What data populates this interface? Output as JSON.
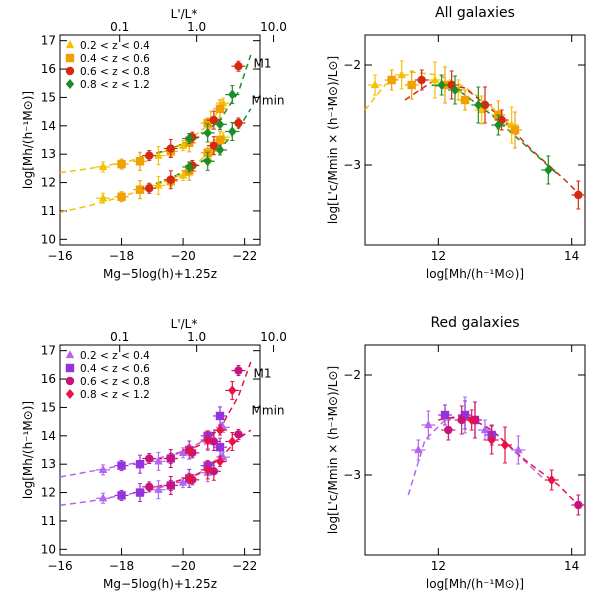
{
  "figure": {
    "panels_left_xlabel": "M_g−5log(h)+1.25z",
    "panels_left_xlabel_text": "Mg−5log(h)+1.25z",
    "panels_left_top_xlabel": "L'/L*",
    "panels_left_ylabel": "log[Mh/(h⁻¹M⊙)]",
    "panels_right_xlabel": "log[Mh/(h⁻¹M⊙)]",
    "panels_right_ylabel": "log[L'c/Mmin × (h⁻¹M⊙)/L⊙]"
  },
  "chart_data": [
    {
      "id": "top-left",
      "type": "scatter",
      "title": "",
      "xlabel": "Mg−5log(h)+1.25z",
      "ylabel": "log[Mh/(h⁻¹M⊙)]",
      "top_xlabel": "L'/L*",
      "xlim": [
        -16,
        -22.5
      ],
      "ylim": [
        9.8,
        17.2
      ],
      "xticks": [
        -16,
        -18,
        -20,
        -22
      ],
      "xtick_labels": [
        "−16",
        "−18",
        "−20",
        "−22"
      ],
      "yticks": [
        10,
        11,
        12,
        13,
        14,
        15,
        16,
        17
      ],
      "ytick_labels": [
        "10",
        "11",
        "12",
        "13",
        "14",
        "15",
        "16",
        "17"
      ],
      "top_ticks": [
        0.1,
        1.0,
        10.0
      ],
      "top_tick_labels": [
        "0.1",
        "1.0",
        "10.0"
      ],
      "annotations": [
        "M1",
        "Mmin"
      ],
      "legend": [
        {
          "label": "0.2 < z < 0.4",
          "color": "#f2c200",
          "marker": "triangle"
        },
        {
          "label": "0.4 < z < 0.6",
          "color": "#f0a000",
          "marker": "square"
        },
        {
          "label": "0.6 < z < 0.8",
          "color": "#d42a10",
          "marker": "circle"
        },
        {
          "label": "0.8 < z < 1.2",
          "color": "#1e8c28",
          "marker": "diamond"
        }
      ],
      "series": [
        {
          "name": "0.2 < z < 0.4 M1",
          "color": "#f2c200",
          "marker": "triangle",
          "x": [
            -17.4,
            -19.2,
            -20.0,
            -20.9,
            -21.3
          ],
          "y": [
            12.55,
            12.95,
            13.3,
            14.2,
            14.8
          ]
        },
        {
          "name": "0.4 < z < 0.6 M1",
          "color": "#f0a000",
          "marker": "square",
          "x": [
            -18.0,
            -18.6,
            -19.6,
            -20.2,
            -20.8,
            -21.2
          ],
          "y": [
            12.65,
            12.75,
            13.1,
            13.4,
            14.1,
            14.6
          ]
        },
        {
          "name": "0.6 < z < 0.8 M1",
          "color": "#d42a10",
          "marker": "circle",
          "x": [
            -18.9,
            -19.6,
            -20.3,
            -21.0,
            -21.8
          ],
          "y": [
            12.95,
            13.2,
            13.6,
            14.2,
            16.1
          ]
        },
        {
          "name": "0.8 < z < 1.2 M1",
          "color": "#1e8c28",
          "marker": "diamond",
          "x": [
            -20.2,
            -20.8,
            -21.2,
            -21.6
          ],
          "y": [
            13.55,
            13.75,
            14.05,
            15.1
          ]
        },
        {
          "name": "0.2 < z < 0.4 Mmin",
          "color": "#f2c200",
          "marker": "triangle",
          "x": [
            -17.4,
            -19.2,
            -20.0,
            -20.9,
            -21.3
          ],
          "y": [
            11.45,
            11.9,
            12.25,
            13.1,
            13.6
          ]
        },
        {
          "name": "0.4 < z < 0.6 Mmin",
          "color": "#f0a000",
          "marker": "square",
          "x": [
            -18.0,
            -18.6,
            -19.6,
            -20.2,
            -20.8,
            -21.2
          ],
          "y": [
            11.5,
            11.75,
            12.05,
            12.4,
            13.05,
            13.5
          ]
        },
        {
          "name": "0.6 < z < 0.8 Mmin",
          "color": "#d42a10",
          "marker": "circle",
          "x": [
            -18.9,
            -19.6,
            -20.3,
            -21.0,
            -21.8
          ],
          "y": [
            11.8,
            12.1,
            12.6,
            13.3,
            14.1
          ]
        },
        {
          "name": "0.8 < z < 1.2 Mmin",
          "color": "#1e8c28",
          "marker": "diamond",
          "x": [
            -20.2,
            -20.8,
            -21.2,
            -21.6
          ],
          "y": [
            12.55,
            12.75,
            13.15,
            13.8
          ]
        }
      ],
      "curves": [
        {
          "color": "#f2c200",
          "x": [
            -16,
            -17,
            -18,
            -19,
            -20,
            -20.8,
            -21.4
          ],
          "y": [
            12.35,
            12.5,
            12.7,
            12.95,
            13.35,
            14.0,
            14.9
          ]
        },
        {
          "color": "#1e8c28",
          "x": [
            -18.5,
            -19.5,
            -20.5,
            -21.2,
            -21.8,
            -22.2
          ],
          "y": [
            12.85,
            13.15,
            13.6,
            14.2,
            15.2,
            16.5
          ]
        },
        {
          "color": "#f2c200",
          "x": [
            -16,
            -17,
            -18,
            -19,
            -20,
            -20.8,
            -21.4
          ],
          "y": [
            10.95,
            11.2,
            11.5,
            11.85,
            12.3,
            13.0,
            13.8
          ]
        },
        {
          "color": "#1e8c28",
          "x": [
            -18.5,
            -19.5,
            -20.5,
            -21.2,
            -21.8,
            -22.2
          ],
          "y": [
            11.75,
            12.1,
            12.65,
            13.2,
            13.9,
            14.6
          ]
        }
      ]
    },
    {
      "id": "top-right",
      "type": "scatter",
      "title": "All galaxies",
      "xlabel": "log[Mh/(h⁻¹M⊙)]",
      "ylabel": "log[L'c/Mmin × (h⁻¹M⊙)/L⊙]",
      "xlim": [
        10.9,
        14.2
      ],
      "ylim": [
        -3.8,
        -1.7
      ],
      "xticks": [
        12,
        14
      ],
      "xtick_labels": [
        "12",
        "14"
      ],
      "yticks": [
        -2,
        -3
      ],
      "ytick_labels": [
        "−2",
        "−3"
      ],
      "series": [
        {
          "name": "0.2 < z < 0.4",
          "color": "#f2c200",
          "marker": "triangle",
          "x": [
            11.05,
            11.45,
            11.95,
            12.3,
            12.65,
            13.1
          ],
          "y": [
            -2.2,
            -2.1,
            -2.15,
            -2.25,
            -2.45,
            -2.6
          ]
        },
        {
          "name": "0.4 < z < 0.6",
          "color": "#f0a000",
          "marker": "square",
          "x": [
            11.3,
            11.6,
            12.1,
            12.4,
            12.9,
            13.15
          ],
          "y": [
            -2.15,
            -2.2,
            -2.2,
            -2.35,
            -2.5,
            -2.65
          ]
        },
        {
          "name": "0.6 < z < 0.8",
          "color": "#d42a10",
          "marker": "circle",
          "x": [
            11.75,
            12.2,
            12.7,
            12.95,
            14.1
          ],
          "y": [
            -2.15,
            -2.2,
            -2.4,
            -2.55,
            -3.3
          ]
        },
        {
          "name": "0.8 < z < 1.2",
          "color": "#1e8c28",
          "marker": "diamond",
          "x": [
            12.05,
            12.25,
            12.6,
            12.9,
            13.65
          ],
          "y": [
            -2.2,
            -2.25,
            -2.4,
            -2.6,
            -3.05
          ]
        }
      ],
      "curves": [
        {
          "color": "#f2c200",
          "x": [
            10.9,
            11.2,
            11.6,
            12.0,
            12.4,
            12.8,
            13.2
          ],
          "y": [
            -2.45,
            -2.2,
            -2.07,
            -2.1,
            -2.22,
            -2.42,
            -2.68
          ]
        },
        {
          "color": "#d42a10",
          "x": [
            11.5,
            11.9,
            12.4,
            12.9,
            13.4,
            13.9,
            14.2
          ],
          "y": [
            -2.35,
            -2.17,
            -2.23,
            -2.5,
            -2.85,
            -3.15,
            -3.35
          ]
        },
        {
          "color": "#1e8c28",
          "x": [
            11.9,
            12.3,
            12.8,
            13.3,
            13.8
          ],
          "y": [
            -2.2,
            -2.25,
            -2.5,
            -2.8,
            -3.1
          ]
        }
      ]
    },
    {
      "id": "bottom-left",
      "type": "scatter",
      "title": "",
      "xlabel": "Mg−5log(h)+1.25z",
      "ylabel": "log[Mh/(h⁻¹M⊙)]",
      "top_xlabel": "L'/L*",
      "xlim": [
        -16,
        -22.5
      ],
      "ylim": [
        9.8,
        17.2
      ],
      "xticks": [
        -16,
        -18,
        -20,
        -22
      ],
      "xtick_labels": [
        "−16",
        "−18",
        "−20",
        "−22"
      ],
      "yticks": [
        10,
        11,
        12,
        13,
        14,
        15,
        16,
        17
      ],
      "ytick_labels": [
        "10",
        "11",
        "12",
        "13",
        "14",
        "15",
        "16",
        "17"
      ],
      "top_ticks": [
        0.1,
        1.0,
        10.0
      ],
      "top_tick_labels": [
        "0.1",
        "1.0",
        "10.0"
      ],
      "annotations": [
        "M1",
        "Mmin"
      ],
      "legend": [
        {
          "label": "0.2 < z < 0.4",
          "color": "#b464f0",
          "marker": "triangle"
        },
        {
          "label": "0.4 < z < 0.6",
          "color": "#9632dc",
          "marker": "square"
        },
        {
          "label": "0.6 < z < 0.8",
          "color": "#c8147a",
          "marker": "circle"
        },
        {
          "label": "0.8 < z < 1.2",
          "color": "#e61446",
          "marker": "diamond"
        }
      ],
      "series": [
        {
          "name": "0.2 < z < 0.4 M1",
          "color": "#b464f0",
          "marker": "triangle",
          "x": [
            -17.4,
            -19.2,
            -20.0,
            -20.8,
            -21.3
          ],
          "y": [
            12.8,
            13.1,
            13.4,
            13.8,
            14.3
          ]
        },
        {
          "name": "0.4 < z < 0.6 M1",
          "color": "#9632dc",
          "marker": "square",
          "x": [
            -18.0,
            -18.6,
            -19.6,
            -20.2,
            -20.8,
            -21.2
          ],
          "y": [
            12.95,
            13.0,
            13.2,
            13.5,
            14.0,
            14.7
          ]
        },
        {
          "name": "0.6 < z < 0.8 M1",
          "color": "#c8147a",
          "marker": "circle",
          "x": [
            -18.9,
            -19.6,
            -20.3,
            -21.0,
            -21.8
          ],
          "y": [
            13.2,
            13.2,
            13.4,
            13.8,
            16.3
          ]
        },
        {
          "name": "0.8 < z < 1.2 M1",
          "color": "#e61446",
          "marker": "diamond",
          "x": [
            -20.2,
            -20.8,
            -21.2,
            -21.6
          ],
          "y": [
            13.5,
            13.85,
            14.2,
            15.6
          ]
        },
        {
          "name": "0.2 < z < 0.4 Mmin",
          "color": "#b464f0",
          "marker": "triangle",
          "x": [
            -17.4,
            -19.2,
            -20.0,
            -20.8,
            -21.3
          ],
          "y": [
            11.8,
            12.1,
            12.35,
            12.7,
            13.25
          ]
        },
        {
          "name": "0.4 < z < 0.6 Mmin",
          "color": "#9632dc",
          "marker": "square",
          "x": [
            -18.0,
            -18.6,
            -19.6,
            -20.2,
            -20.8,
            -21.2
          ],
          "y": [
            11.9,
            12.0,
            12.25,
            12.5,
            12.95,
            13.6
          ]
        },
        {
          "name": "0.6 < z < 0.8 Mmin",
          "color": "#c8147a",
          "marker": "circle",
          "x": [
            -18.9,
            -19.6,
            -20.3,
            -21.0,
            -21.8
          ],
          "y": [
            12.2,
            12.25,
            12.45,
            12.75,
            14.05
          ]
        },
        {
          "name": "0.8 < z < 1.2 Mmin",
          "color": "#e61446",
          "marker": "diamond",
          "x": [
            -20.2,
            -20.8,
            -21.2,
            -21.6
          ],
          "y": [
            12.5,
            12.8,
            13.1,
            13.8
          ]
        }
      ],
      "curves": [
        {
          "color": "#b464f0",
          "x": [
            -16,
            -17,
            -18,
            -19,
            -20,
            -20.8,
            -21.4
          ],
          "y": [
            12.55,
            12.75,
            12.95,
            13.15,
            13.45,
            13.9,
            14.6
          ]
        },
        {
          "color": "#e61446",
          "x": [
            -18.5,
            -19.5,
            -20.5,
            -21.2,
            -21.8,
            -22.2
          ],
          "y": [
            13.0,
            13.25,
            13.65,
            14.25,
            15.4,
            16.6
          ]
        },
        {
          "color": "#b464f0",
          "x": [
            -16,
            -17,
            -18,
            -19,
            -20,
            -20.8,
            -21.4
          ],
          "y": [
            11.55,
            11.7,
            11.9,
            12.1,
            12.4,
            12.85,
            13.5
          ]
        },
        {
          "color": "#e61446",
          "x": [
            -18.5,
            -19.5,
            -20.5,
            -21.2,
            -21.8,
            -22.2
          ],
          "y": [
            12.05,
            12.3,
            12.65,
            13.2,
            13.9,
            14.2
          ]
        }
      ]
    },
    {
      "id": "bottom-right",
      "type": "scatter",
      "title": "Red galaxies",
      "xlabel": "log[Mh/(h⁻¹M⊙)]",
      "ylabel": "log[L'c/Mmin × (h⁻¹M⊙)/L⊙]",
      "xlim": [
        10.9,
        14.2
      ],
      "ylim": [
        -3.8,
        -1.7
      ],
      "xticks": [
        12,
        14
      ],
      "xtick_labels": [
        "12",
        "14"
      ],
      "yticks": [
        -2,
        -3
      ],
      "ytick_labels": [
        "−2",
        "−3"
      ],
      "series": [
        {
          "name": "0.2 < z < 0.4",
          "color": "#b464f0",
          "marker": "triangle",
          "x": [
            11.7,
            11.85,
            12.4,
            12.7,
            13.2
          ],
          "y": [
            -2.75,
            -2.5,
            -2.4,
            -2.55,
            -2.75
          ]
        },
        {
          "name": "0.4 < z < 0.6",
          "color": "#9632dc",
          "marker": "square",
          "x": [
            12.1,
            12.4,
            12.55,
            12.8
          ],
          "y": [
            -2.4,
            -2.4,
            -2.45,
            -2.6
          ]
        },
        {
          "name": "0.6 < z < 0.8",
          "color": "#c8147a",
          "marker": "circle",
          "x": [
            12.15,
            12.35,
            12.55,
            14.1
          ],
          "y": [
            -2.55,
            -2.45,
            -2.45,
            -3.3
          ]
        },
        {
          "name": "0.8 < z < 1.2",
          "color": "#e61446",
          "marker": "diamond",
          "x": [
            12.5,
            12.8,
            13.0,
            13.7
          ],
          "y": [
            -2.45,
            -2.65,
            -2.7,
            -3.05
          ]
        }
      ],
      "curves": [
        {
          "color": "#b464f0",
          "x": [
            11.55,
            11.8,
            12.1,
            12.4,
            12.8,
            13.2,
            13.6
          ],
          "y": [
            -3.2,
            -2.65,
            -2.45,
            -2.4,
            -2.55,
            -2.8,
            -3.05
          ]
        },
        {
          "color": "#e61446",
          "x": [
            12.0,
            12.4,
            12.8,
            13.3,
            13.8,
            14.1
          ],
          "y": [
            -2.45,
            -2.4,
            -2.55,
            -2.85,
            -3.1,
            -3.3
          ]
        }
      ]
    }
  ]
}
